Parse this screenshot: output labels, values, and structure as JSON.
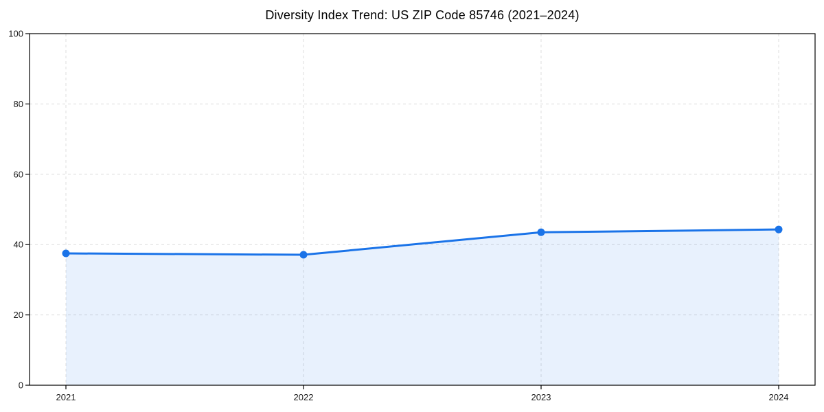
{
  "chart_data": {
    "type": "line",
    "title": "Diversity Index Trend: US ZIP Code 85746 (2021–2024)",
    "categories": [
      "2021",
      "2022",
      "2023",
      "2024"
    ],
    "series": [
      {
        "name": "Diversity Index",
        "values": [
          37.5,
          37.1,
          43.5,
          44.3
        ]
      }
    ],
    "xlabel": "",
    "ylabel": "",
    "ylim": [
      0,
      100
    ],
    "yticks": [
      0,
      20,
      40,
      60,
      80,
      100
    ],
    "grid": true,
    "grid_style": "dashed",
    "legend_position": "none",
    "marker": "circle",
    "area_fill": true,
    "colors": {
      "line": "#1a73e8",
      "marker": "#1a73e8",
      "area": "rgba(26,115,232,0.10)",
      "grid": "#dcdcdc",
      "axis": "#000000",
      "tick_label": "#1a1a1a",
      "title": "#000000",
      "background": "#ffffff"
    }
  }
}
